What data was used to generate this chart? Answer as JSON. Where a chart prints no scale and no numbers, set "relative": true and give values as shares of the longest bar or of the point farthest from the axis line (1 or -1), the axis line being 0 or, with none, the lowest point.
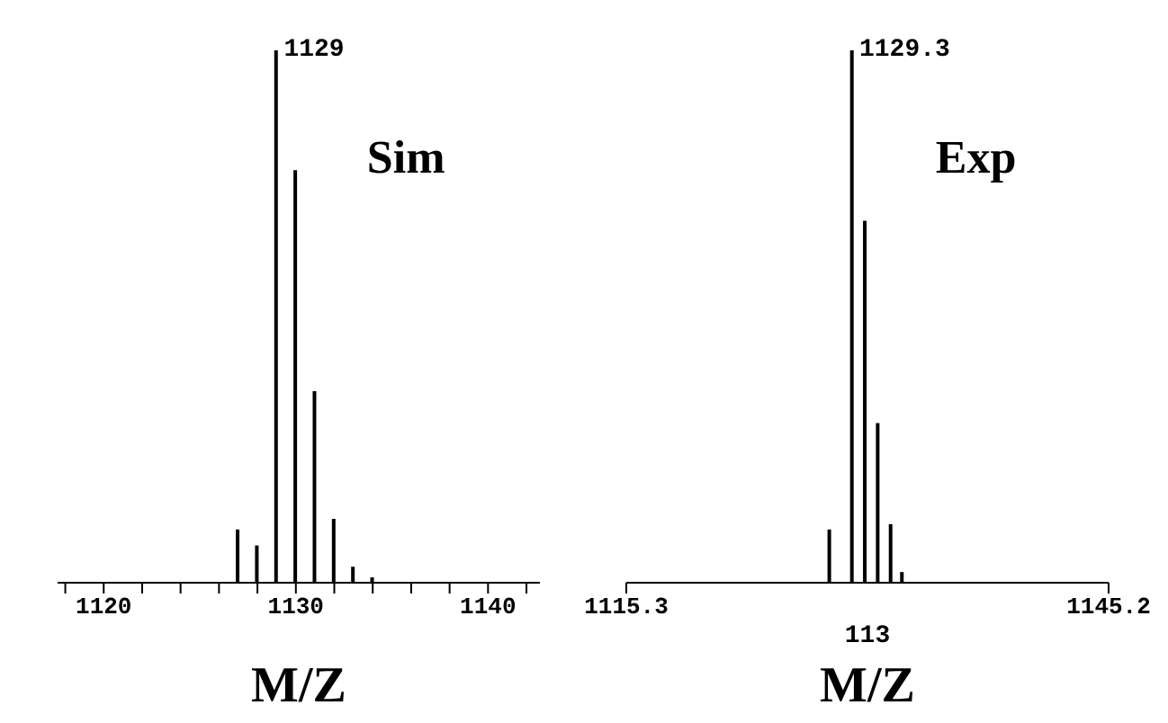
{
  "chart_data": [
    {
      "type": "bar",
      "relative": true,
      "title": "Sim",
      "xlabel": "M/Z",
      "x": [
        1127,
        1128,
        1129,
        1130,
        1131,
        1132,
        1133,
        1134
      ],
      "values": [
        0.1,
        0.07,
        1,
        0.775,
        0.36,
        0.12,
        0.03,
        0.01
      ],
      "color": "#000000",
      "xlim": [
        1117.6,
        1142.7
      ],
      "xticks": [
        {
          "value": 1118,
          "label": null
        },
        1120,
        {
          "value": 1122,
          "label": null
        },
        {
          "value": 1124,
          "label": null
        },
        {
          "value": 1126,
          "label": null
        },
        {
          "value": 1128,
          "label": null
        },
        1130,
        {
          "value": 1132,
          "label": null
        },
        {
          "value": 1134,
          "label": null
        },
        {
          "value": 1136,
          "label": null
        },
        {
          "value": 1138,
          "label": null
        },
        1140,
        {
          "value": 1142,
          "label": null
        }
      ],
      "annotations": [
        {
          "text": "1129",
          "x": 1129,
          "y": 1
        }
      ]
    },
    {
      "type": "bar",
      "relative": true,
      "title": "Exp",
      "xlabel": "M/Z",
      "x": [
        1127.9,
        1129.3,
        1130.1,
        1130.9,
        1131.7,
        1132.4
      ],
      "values": [
        0.1,
        1,
        0.68,
        0.3,
        0.11,
        0.02
      ],
      "color": "#000000",
      "xlim": [
        1115.3,
        1145.2
      ],
      "xticks": [
        1115.3,
        1145.2
      ],
      "annotations": [
        {
          "text": "1129.3",
          "x": 1129.3,
          "y": 1
        },
        "113"
      ]
    }
  ]
}
